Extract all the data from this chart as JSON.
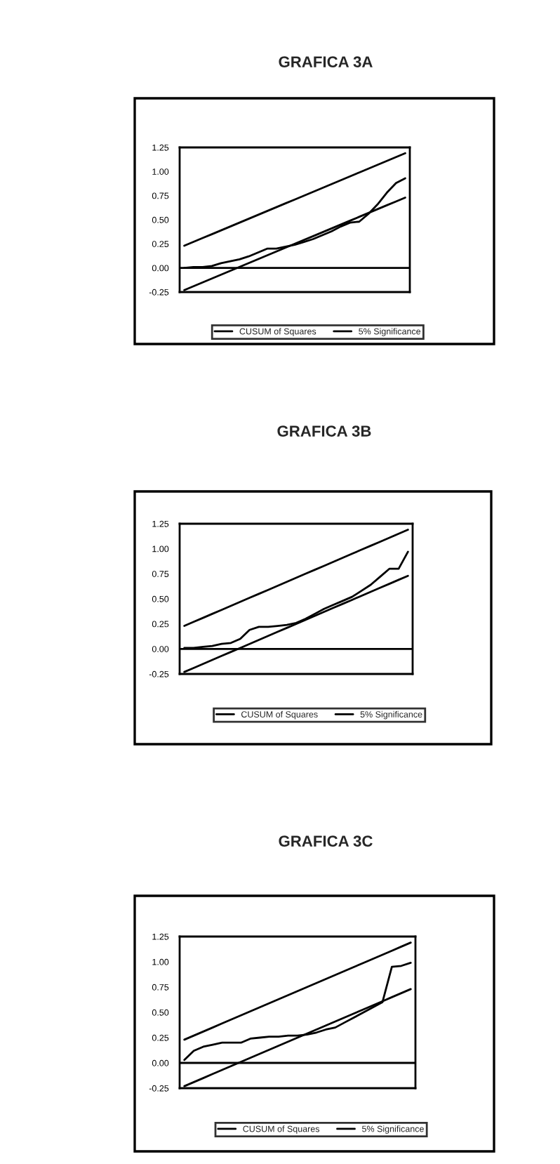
{
  "chart_data": [
    {
      "type": "line",
      "title": "GRAFICA 3A",
      "categories": [
        null,
        null,
        null,
        null,
        null,
        null,
        null,
        null,
        null,
        null,
        null,
        null,
        null,
        null,
        null,
        null,
        null,
        null,
        null,
        null,
        null,
        null,
        null,
        null,
        null
      ],
      "series": [
        {
          "name": "CUSUM of Squares",
          "color": "#000000",
          "values": [
            0.0,
            0.01,
            0.01,
            0.02,
            0.05,
            0.07,
            0.09,
            0.12,
            0.16,
            0.2,
            0.2,
            0.22,
            0.24,
            0.27,
            0.3,
            0.34,
            0.38,
            0.43,
            0.47,
            0.48,
            0.56,
            0.66,
            0.78,
            0.88,
            0.93
          ]
        },
        {
          "name": "5% Significance",
          "color": "#000000",
          "values": [
            -0.23,
            -0.19,
            -0.15,
            -0.11,
            -0.07,
            -0.03,
            0.01,
            0.05,
            0.09,
            0.13,
            0.17,
            0.21,
            0.25,
            0.29,
            0.33,
            0.37,
            0.41,
            0.45,
            0.49,
            0.53,
            0.57,
            0.61,
            0.65,
            0.69,
            0.73
          ]
        },
        {
          "color": "#000000",
          "values": [
            0.23,
            0.27,
            0.31,
            0.35,
            0.39,
            0.43,
            0.47,
            0.51,
            0.55,
            0.59,
            0.63,
            0.67,
            0.71,
            0.75,
            0.79,
            0.83,
            0.87,
            0.91,
            0.95,
            0.99,
            1.03,
            1.07,
            1.11,
            1.15,
            1.19
          ]
        }
      ],
      "ylim": [
        -0.25,
        1.25
      ],
      "yticks": [
        {
          "value": -0.25,
          "label": "-0.25"
        },
        {
          "value": 0,
          "label": "0.00"
        },
        {
          "value": 0.25,
          "label": "0.25"
        },
        {
          "value": 0.5,
          "label": "0.50"
        },
        {
          "value": 0.75,
          "label": "0.75"
        },
        {
          "value": 1.0,
          "label": "1.00"
        },
        {
          "value": 1.25,
          "label": "1.25"
        }
      ],
      "ref_lines": [
        {
          "axis": "y",
          "value": 0,
          "color": "#000000"
        }
      ],
      "legend": "bottom",
      "grid": false,
      "line_style": "solid",
      "marker": "none"
    },
    {
      "type": "line",
      "title": "GRAFICA 3B",
      "categories": [
        null,
        null,
        null,
        null,
        null,
        null,
        null,
        null,
        null,
        null,
        null,
        null,
        null,
        null,
        null,
        null,
        null,
        null,
        null,
        null,
        null,
        null,
        null,
        null,
        null
      ],
      "series": [
        {
          "name": "CUSUM of Squares",
          "color": "#000000",
          "values": [
            0.01,
            0.01,
            0.02,
            0.03,
            0.05,
            0.06,
            0.1,
            0.19,
            0.22,
            0.22,
            0.23,
            0.24,
            0.26,
            0.3,
            0.35,
            0.4,
            0.44,
            0.48,
            0.52,
            0.58,
            0.64,
            0.72,
            0.8,
            0.8,
            0.97
          ]
        },
        {
          "name": "5% Significance",
          "color": "#000000",
          "values": [
            -0.23,
            -0.19,
            -0.15,
            -0.11,
            -0.07,
            -0.03,
            0.01,
            0.05,
            0.09,
            0.13,
            0.17,
            0.21,
            0.25,
            0.29,
            0.33,
            0.37,
            0.41,
            0.45,
            0.49,
            0.53,
            0.57,
            0.61,
            0.65,
            0.69,
            0.73
          ]
        },
        {
          "color": "#000000",
          "values": [
            0.23,
            0.27,
            0.31,
            0.35,
            0.39,
            0.43,
            0.47,
            0.51,
            0.55,
            0.59,
            0.63,
            0.67,
            0.71,
            0.75,
            0.79,
            0.83,
            0.87,
            0.91,
            0.95,
            0.99,
            1.03,
            1.07,
            1.11,
            1.15,
            1.19
          ]
        }
      ],
      "ylim": [
        -0.25,
        1.25
      ],
      "yticks": [
        {
          "value": -0.25,
          "label": "-0.25"
        },
        {
          "value": 0,
          "label": "0.00"
        },
        {
          "value": 0.25,
          "label": "0.25"
        },
        {
          "value": 0.5,
          "label": "0.50"
        },
        {
          "value": 0.75,
          "label": "0.75"
        },
        {
          "value": 1.0,
          "label": "1.00"
        },
        {
          "value": 1.25,
          "label": "1.25"
        }
      ],
      "ref_lines": [
        {
          "axis": "y",
          "value": 0,
          "color": "#000000"
        }
      ],
      "legend": "bottom",
      "grid": false,
      "line_style": "solid",
      "marker": "none"
    },
    {
      "type": "line",
      "title": "GRAFICA 3C",
      "categories": [
        null,
        null,
        null,
        null,
        null,
        null,
        null,
        null,
        null,
        null,
        null,
        null,
        null,
        null,
        null,
        null,
        null,
        null,
        null,
        null,
        null,
        null,
        null,
        null,
        null
      ],
      "series": [
        {
          "name": "CUSUM of Squares",
          "color": "#000000",
          "values": [
            0.03,
            0.12,
            0.16,
            0.18,
            0.2,
            0.2,
            0.2,
            0.24,
            0.25,
            0.26,
            0.26,
            0.27,
            0.27,
            0.28,
            0.3,
            0.33,
            0.35,
            0.4,
            0.45,
            0.5,
            0.55,
            0.6,
            0.95,
            0.96,
            0.99
          ]
        },
        {
          "name": "5% Significance",
          "color": "#000000",
          "values": [
            -0.23,
            -0.19,
            -0.15,
            -0.11,
            -0.07,
            -0.03,
            0.01,
            0.05,
            0.09,
            0.13,
            0.17,
            0.21,
            0.25,
            0.29,
            0.33,
            0.37,
            0.41,
            0.45,
            0.49,
            0.53,
            0.57,
            0.61,
            0.65,
            0.69,
            0.73
          ]
        },
        {
          "color": "#000000",
          "values": [
            0.23,
            0.27,
            0.31,
            0.35,
            0.39,
            0.43,
            0.47,
            0.51,
            0.55,
            0.59,
            0.63,
            0.67,
            0.71,
            0.75,
            0.79,
            0.83,
            0.87,
            0.91,
            0.95,
            0.99,
            1.03,
            1.07,
            1.11,
            1.15,
            1.19
          ]
        }
      ],
      "ylim": [
        -0.25,
        1.25
      ],
      "yticks": [
        {
          "value": -0.25,
          "label": "-0.25"
        },
        {
          "value": 0,
          "label": "0.00"
        },
        {
          "value": 0.25,
          "label": "0.25"
        },
        {
          "value": 0.5,
          "label": "0.50"
        },
        {
          "value": 0.75,
          "label": "0.75"
        },
        {
          "value": 1.0,
          "label": "1.00"
        },
        {
          "value": 1.25,
          "label": "1.25"
        }
      ],
      "ref_lines": [
        {
          "axis": "y",
          "value": 0,
          "color": "#000000"
        }
      ],
      "legend": "bottom",
      "grid": false,
      "line_style": "solid",
      "marker": "none"
    }
  ]
}
